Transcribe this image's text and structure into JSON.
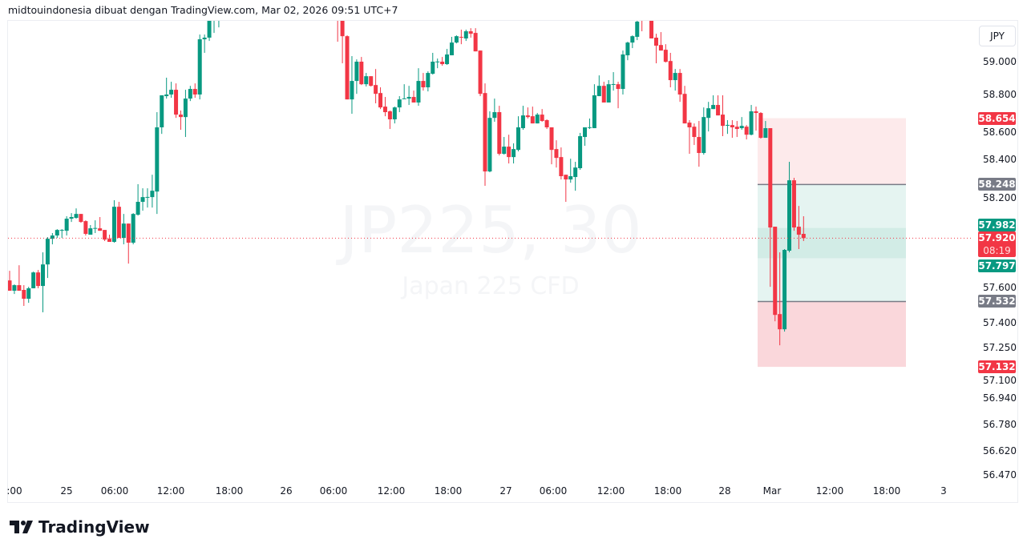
{
  "header": {
    "text": "midtouindonesia dibuat dengan TradingView.com, Mar 02, 2026 09:51 UTC+7"
  },
  "watermark": {
    "symbol": "JP225, 30",
    "description": "Japan 225 CFD"
  },
  "currency_button": "JPY",
  "footer": {
    "logo_text": "TradingView"
  },
  "colors": {
    "up": "#089981",
    "down": "#F23645",
    "gray": "#787B86",
    "profit_zone": "#e5f4f1",
    "profit_zone_dark": "#d2ece6",
    "loss_zone": "#fad7db",
    "loss_zone_light": "#fdeaeb"
  },
  "price_labels": [
    {
      "value": "58.654",
      "color": "#F23645"
    },
    {
      "value": "58.248",
      "color": "#787B86"
    },
    {
      "value": "57.982",
      "color": "#089981"
    },
    {
      "value": "57.920",
      "sub": "08:19",
      "color": "#F23645"
    },
    {
      "value": "57.797",
      "color": "#089981"
    },
    {
      "value": "57.532",
      "color": "#787B86"
    },
    {
      "value": "57.132",
      "color": "#F23645"
    }
  ],
  "chart_data": {
    "type": "candlestick",
    "interval": "30",
    "symbol": "JP225",
    "ylim": [
      56.42,
      59.245
    ],
    "y_ticks": [
      "59.000",
      "58.800",
      "58.600",
      "58.400",
      "58.200",
      "57.600",
      "57.400",
      "57.250",
      "57.100",
      "56.940",
      "56.780",
      "56.620",
      "56.470"
    ],
    "x_ticks": [
      ":00",
      "25",
      "06:00",
      "12:00",
      "18:00",
      "26",
      "06:00",
      "12:00",
      "18:00",
      "27",
      "06:00",
      "12:00",
      "18:00",
      "28",
      "Mar",
      "12:00",
      "18:00",
      "3"
    ],
    "last_price": 57.92,
    "countdown": "08:19",
    "position_tool": {
      "target": 58.654,
      "upper_line": 58.248,
      "band_top": 57.982,
      "band_bottom": 57.797,
      "lower_line": 57.532,
      "stop": 57.132
    },
    "ohlc": [
      [
        57.661,
        57.72,
        57.598,
        57.598
      ],
      [
        57.598,
        57.637,
        57.578,
        57.632
      ],
      [
        57.632,
        57.754,
        57.598,
        57.598
      ],
      [
        57.603,
        57.632,
        57.505,
        57.549
      ],
      [
        57.549,
        57.622,
        57.524,
        57.613
      ],
      [
        57.613,
        57.715,
        57.613,
        57.71
      ],
      [
        57.71,
        57.725,
        57.613,
        57.627
      ],
      [
        57.627,
        57.833,
        57.466,
        57.759
      ],
      [
        57.759,
        57.926,
        57.676,
        57.916
      ],
      [
        57.916,
        57.951,
        57.882,
        57.936
      ],
      [
        57.936,
        57.975,
        57.921,
        57.97
      ],
      [
        57.97,
        57.975,
        57.921,
        57.97
      ],
      [
        57.965,
        58.054,
        57.936,
        58.039
      ],
      [
        58.039,
        58.073,
        58.019,
        58.049
      ],
      [
        58.044,
        58.102,
        58.039,
        58.068
      ],
      [
        58.068,
        58.068,
        58.014,
        58.019
      ],
      [
        58.024,
        58.029,
        57.936,
        57.946
      ],
      [
        57.941,
        58.0,
        57.941,
        57.98
      ],
      [
        57.98,
        58.029,
        57.951,
        57.982
      ],
      [
        57.98,
        58.049,
        57.965,
        57.965
      ],
      [
        57.97,
        57.97,
        57.902,
        57.911
      ],
      [
        57.916,
        57.941,
        57.897,
        57.897
      ],
      [
        57.897,
        58.152,
        57.892,
        58.112
      ],
      [
        58.112,
        58.142,
        57.921,
        57.921
      ],
      [
        57.921,
        58.068,
        57.882,
        58.009
      ],
      [
        58.009,
        58.009,
        57.764,
        57.892
      ],
      [
        57.892,
        58.073,
        57.882,
        58.068
      ],
      [
        58.063,
        58.25,
        58.058,
        58.142
      ],
      [
        58.142,
        58.225,
        58.088,
        58.171
      ],
      [
        58.171,
        58.225,
        58.107,
        58.172
      ],
      [
        58.171,
        58.308,
        58.107,
        58.21
      ],
      [
        58.205,
        58.691,
        58.068,
        58.598
      ],
      [
        58.598,
        58.794,
        58.558,
        58.794
      ],
      [
        58.789,
        58.902,
        58.774,
        58.799
      ],
      [
        58.799,
        58.877,
        58.779,
        58.828
      ],
      [
        58.828,
        58.867,
        58.656,
        58.676
      ],
      [
        58.676,
        58.701,
        58.583,
        58.661
      ],
      [
        58.661,
        58.828,
        58.539,
        58.774
      ],
      [
        58.774,
        58.852,
        58.759,
        58.833
      ],
      [
        58.833,
        58.867,
        58.779,
        58.799
      ],
      [
        58.799,
        59.166,
        58.769,
        59.137
      ],
      [
        59.137,
        59.166,
        59.054,
        59.147
      ],
      [
        59.147,
        59.35,
        59.127,
        59.3
      ],
      [
        59.3,
        59.4,
        59.176,
        59.35
      ],
      [
        59.35,
        59.42,
        59.21,
        59.38
      ],
      null,
      null,
      null,
      null,
      null,
      null,
      null,
      null,
      null,
      null,
      null,
      null,
      null,
      null,
      null,
      null,
      null,
      null,
      null,
      null,
      null,
      null,
      null,
      null,
      [
        59.32,
        59.36,
        59.122,
        59.26
      ],
      [
        59.26,
        59.3,
        58.99,
        59.156
      ],
      [
        59.156,
        59.161,
        58.769,
        58.769
      ],
      [
        58.769,
        59.034,
        58.681,
        58.882
      ],
      [
        58.882,
        59.014,
        58.803,
        59.0
      ],
      [
        59.0,
        59.029,
        58.857,
        58.862
      ],
      [
        58.862,
        58.931,
        58.848,
        58.911
      ],
      [
        58.911,
        58.911,
        58.848,
        58.852
      ],
      [
        58.857,
        58.955,
        58.745,
        58.803
      ],
      [
        58.808,
        58.843,
        58.71,
        58.72
      ],
      [
        58.725,
        58.784,
        58.666,
        58.691
      ],
      [
        58.696,
        58.701,
        58.588,
        58.647
      ],
      [
        58.647,
        58.725,
        58.622,
        58.72
      ],
      [
        58.72,
        58.789,
        58.691,
        58.769
      ],
      [
        58.774,
        58.862,
        58.774,
        58.775
      ],
      [
        58.774,
        58.852,
        58.735,
        58.784
      ],
      [
        58.784,
        58.823,
        58.75,
        58.75
      ],
      [
        58.75,
        58.96,
        58.73,
        58.882
      ],
      [
        58.882,
        58.931,
        58.823,
        58.843
      ],
      [
        58.843,
        58.941,
        58.818,
        58.931
      ],
      [
        58.926,
        59.054,
        58.921,
        59.0
      ],
      [
        59.0,
        59.019,
        58.96,
        59.001
      ],
      [
        59.0,
        59.029,
        58.975,
        58.985
      ],
      [
        58.985,
        59.078,
        58.98,
        59.044
      ],
      [
        59.039,
        59.152,
        59.039,
        59.117
      ],
      [
        59.117,
        59.161,
        59.112,
        59.156
      ],
      [
        59.152,
        59.196,
        59.107,
        59.15
      ],
      [
        59.142,
        59.196,
        59.127,
        59.186
      ],
      [
        59.186,
        59.205,
        59.147,
        59.171
      ],
      [
        59.176,
        59.205,
        59.063,
        59.063
      ],
      [
        59.068,
        59.068,
        58.789,
        58.803
      ],
      [
        58.808,
        58.867,
        58.24,
        58.328
      ],
      [
        58.328,
        58.696,
        58.323,
        58.656
      ],
      [
        58.656,
        58.774,
        58.632,
        58.691
      ],
      [
        58.691,
        58.73,
        58.426,
        58.436
      ],
      [
        58.436,
        58.539,
        58.431,
        58.48
      ],
      [
        58.48,
        58.553,
        58.377,
        58.416
      ],
      [
        58.416,
        58.5,
        58.377,
        58.465
      ],
      [
        58.46,
        58.666,
        58.451,
        58.598
      ],
      [
        58.593,
        58.73,
        58.583,
        58.671
      ],
      [
        58.671,
        58.72,
        58.652,
        58.661
      ],
      [
        58.666,
        58.725,
        58.622,
        58.622
      ],
      [
        58.622,
        58.686,
        58.622,
        58.676
      ],
      [
        58.676,
        58.71,
        58.632,
        58.637
      ],
      [
        58.642,
        58.647,
        58.588,
        58.598
      ],
      [
        58.598,
        58.598,
        58.372,
        58.46
      ],
      [
        58.465,
        58.519,
        58.352,
        58.411
      ],
      [
        58.416,
        58.475,
        58.279,
        58.299
      ],
      [
        58.308,
        58.308,
        58.142,
        58.279
      ],
      [
        58.279,
        58.406,
        58.259,
        58.299
      ],
      [
        58.294,
        58.387,
        58.21,
        58.352
      ],
      [
        58.348,
        58.564,
        58.338,
        58.544
      ],
      [
        58.539,
        58.598,
        58.485,
        58.598
      ],
      [
        58.598,
        58.652,
        58.588,
        58.599
      ],
      [
        58.593,
        58.862,
        58.593,
        58.794
      ],
      [
        58.789,
        58.916,
        58.789,
        58.852
      ],
      [
        58.852,
        58.877,
        58.75,
        58.75
      ],
      [
        58.75,
        58.887,
        58.75,
        58.862
      ],
      [
        58.862,
        58.936,
        58.823,
        58.863
      ],
      [
        58.862,
        58.877,
        58.715,
        58.833
      ],
      [
        58.833,
        59.068,
        58.799,
        59.044
      ],
      [
        59.039,
        59.122,
        59.009,
        59.117
      ],
      [
        59.117,
        59.161,
        59.083,
        59.156
      ],
      [
        59.152,
        59.279,
        59.132,
        59.245
      ],
      [
        59.3,
        59.33,
        59.186,
        59.28
      ],
      [
        59.32,
        59.35,
        59.26,
        59.33
      ],
      [
        59.3,
        59.32,
        59.142,
        59.142
      ],
      [
        59.147,
        59.171,
        58.99,
        59.098
      ],
      [
        59.102,
        59.181,
        59.068,
        59.068
      ],
      [
        59.073,
        59.107,
        58.995,
        58.999
      ],
      [
        59.004,
        59.054,
        58.843,
        58.887
      ],
      [
        58.887,
        58.955,
        58.823,
        58.931
      ],
      [
        58.931,
        58.955,
        58.754,
        58.799
      ],
      [
        58.803,
        58.852,
        58.622,
        58.622
      ],
      [
        58.627,
        58.642,
        58.436,
        58.598
      ],
      [
        58.602,
        58.622,
        58.49,
        58.539
      ],
      [
        58.539,
        58.637,
        58.357,
        58.441
      ],
      [
        58.441,
        58.72,
        58.431,
        58.661
      ],
      [
        58.656,
        58.754,
        58.573,
        58.715
      ],
      [
        58.71,
        58.794,
        58.71,
        58.735
      ],
      [
        58.735,
        58.794,
        58.671,
        58.671
      ],
      [
        58.676,
        58.794,
        58.544,
        58.607
      ],
      [
        58.612,
        58.642,
        58.558,
        58.613
      ],
      [
        58.612,
        58.642,
        58.534,
        58.598
      ],
      [
        58.602,
        58.637,
        58.539,
        58.588
      ],
      [
        58.593,
        58.661,
        58.583,
        58.607
      ],
      [
        58.602,
        58.612,
        58.524,
        58.553
      ],
      [
        58.553,
        58.735,
        58.549,
        58.696
      ],
      [
        58.696,
        58.725,
        58.578,
        58.686
      ],
      [
        58.686,
        58.691,
        58.529,
        58.534
      ],
      [
        58.534,
        58.637,
        58.534,
        58.593
      ],
      [
        58.593,
        58.593,
        57.622,
        57.985
      ],
      [
        57.99,
        57.99,
        57.411,
        57.45
      ],
      [
        57.455,
        57.833,
        57.264,
        57.362
      ],
      [
        57.362,
        57.853,
        57.348,
        57.848
      ],
      [
        57.843,
        58.387,
        57.833,
        58.274
      ],
      [
        58.274,
        58.289,
        57.965,
        57.985
      ],
      [
        57.99,
        58.117,
        57.853,
        57.941
      ],
      [
        57.946,
        58.054,
        57.902,
        57.92
      ]
    ]
  }
}
